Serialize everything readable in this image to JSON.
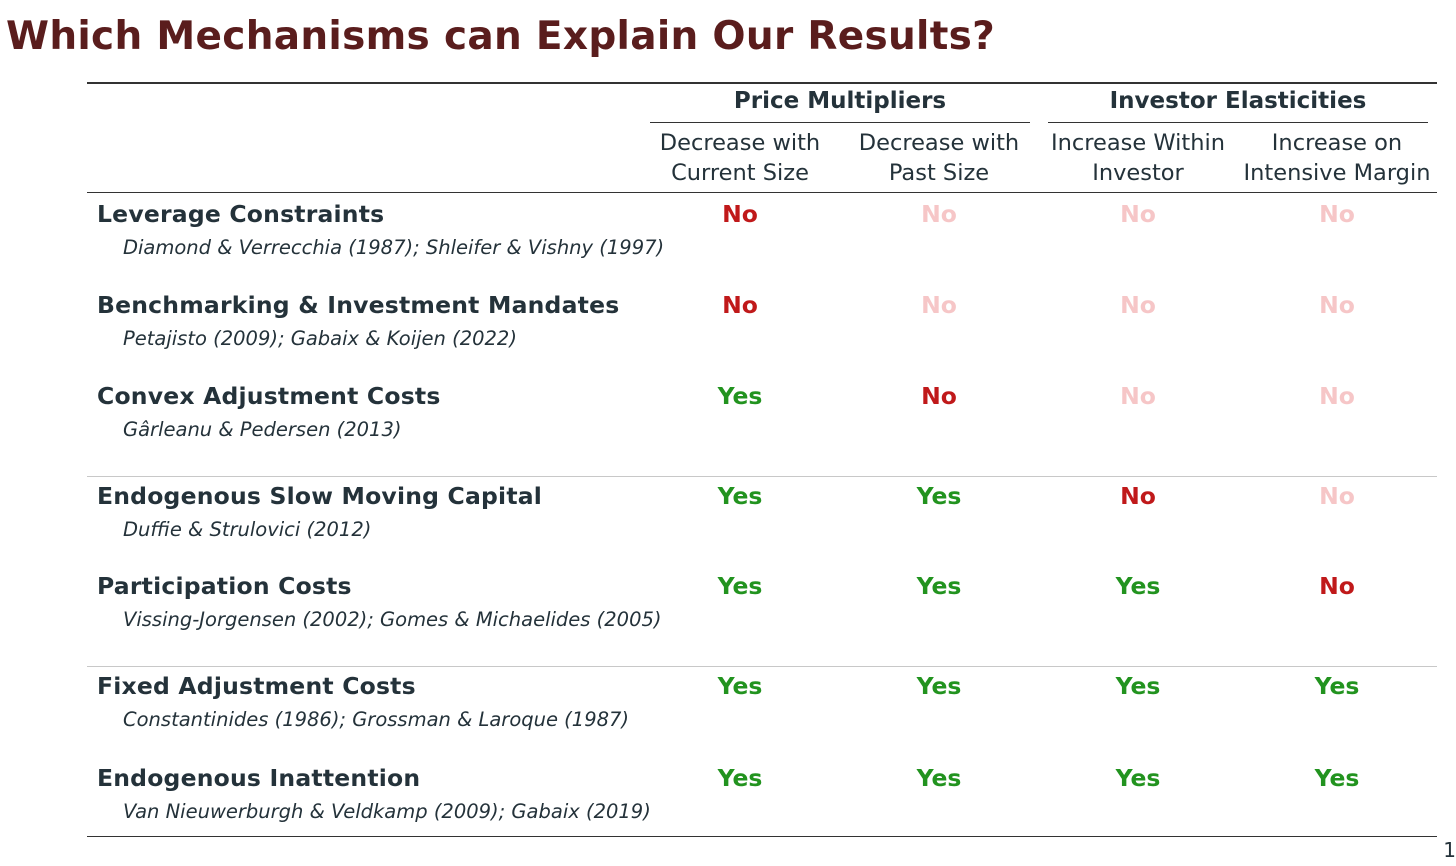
{
  "title": "Which Mechanisms can Explain Our Results?",
  "groups": {
    "price_multipliers": "Price Multipliers",
    "investor_elasticities": "Investor Elasticities"
  },
  "columns": [
    {
      "line1": "Decrease with",
      "line2": "Current Size"
    },
    {
      "line1": "Decrease with",
      "line2": "Past Size"
    },
    {
      "line1": "Increase Within",
      "line2": "Investor"
    },
    {
      "line1": "Increase on",
      "line2": "Intensive Margin"
    }
  ],
  "rows": [
    {
      "name": "Leverage Constraints",
      "citation": "Diamond & Verrecchia (1987); Shleifer & Vishny (1997)",
      "cells": [
        {
          "text": "No",
          "style": "no"
        },
        {
          "text": "No",
          "style": "faded"
        },
        {
          "text": "No",
          "style": "faded"
        },
        {
          "text": "No",
          "style": "faded"
        }
      ]
    },
    {
      "name": "Benchmarking & Investment Mandates",
      "citation": "Petajisto (2009); Gabaix & Koijen (2022)",
      "cells": [
        {
          "text": "No",
          "style": "no"
        },
        {
          "text": "No",
          "style": "faded"
        },
        {
          "text": "No",
          "style": "faded"
        },
        {
          "text": "No",
          "style": "faded"
        }
      ]
    },
    {
      "name": "Convex Adjustment Costs",
      "citation": "Gârleanu & Pedersen (2013)",
      "cells": [
        {
          "text": "Yes",
          "style": "yes"
        },
        {
          "text": "No",
          "style": "no"
        },
        {
          "text": "No",
          "style": "faded"
        },
        {
          "text": "No",
          "style": "faded"
        }
      ]
    },
    {
      "name": "Endogenous Slow Moving Capital",
      "citation": "Duffie & Strulovici (2012)",
      "cells": [
        {
          "text": "Yes",
          "style": "yes"
        },
        {
          "text": "Yes",
          "style": "yes"
        },
        {
          "text": "No",
          "style": "no"
        },
        {
          "text": "No",
          "style": "faded"
        }
      ]
    },
    {
      "name": "Participation Costs",
      "citation": "Vissing-Jorgensen (2002); Gomes & Michaelides (2005)",
      "cells": [
        {
          "text": "Yes",
          "style": "yes"
        },
        {
          "text": "Yes",
          "style": "yes"
        },
        {
          "text": "Yes",
          "style": "yes"
        },
        {
          "text": "No",
          "style": "no"
        }
      ]
    },
    {
      "name": "Fixed Adjustment Costs",
      "citation": "Constantinides (1986); Grossman & Laroque (1987)",
      "cells": [
        {
          "text": "Yes",
          "style": "yes"
        },
        {
          "text": "Yes",
          "style": "yes"
        },
        {
          "text": "Yes",
          "style": "yes"
        },
        {
          "text": "Yes",
          "style": "yes"
        }
      ]
    },
    {
      "name": "Endogenous Inattention",
      "citation": "Van Nieuwerburgh & Veldkamp (2009); Gabaix (2019)",
      "cells": [
        {
          "text": "Yes",
          "style": "yes"
        },
        {
          "text": "Yes",
          "style": "yes"
        },
        {
          "text": "Yes",
          "style": "yes"
        },
        {
          "text": "Yes",
          "style": "yes"
        }
      ]
    }
  ],
  "colors": {
    "title": "#5a1d1d",
    "yes": "#22931f",
    "no": "#c0191a",
    "faded": "#f6c6c7",
    "text": "#24323a"
  },
  "page_number": "1"
}
